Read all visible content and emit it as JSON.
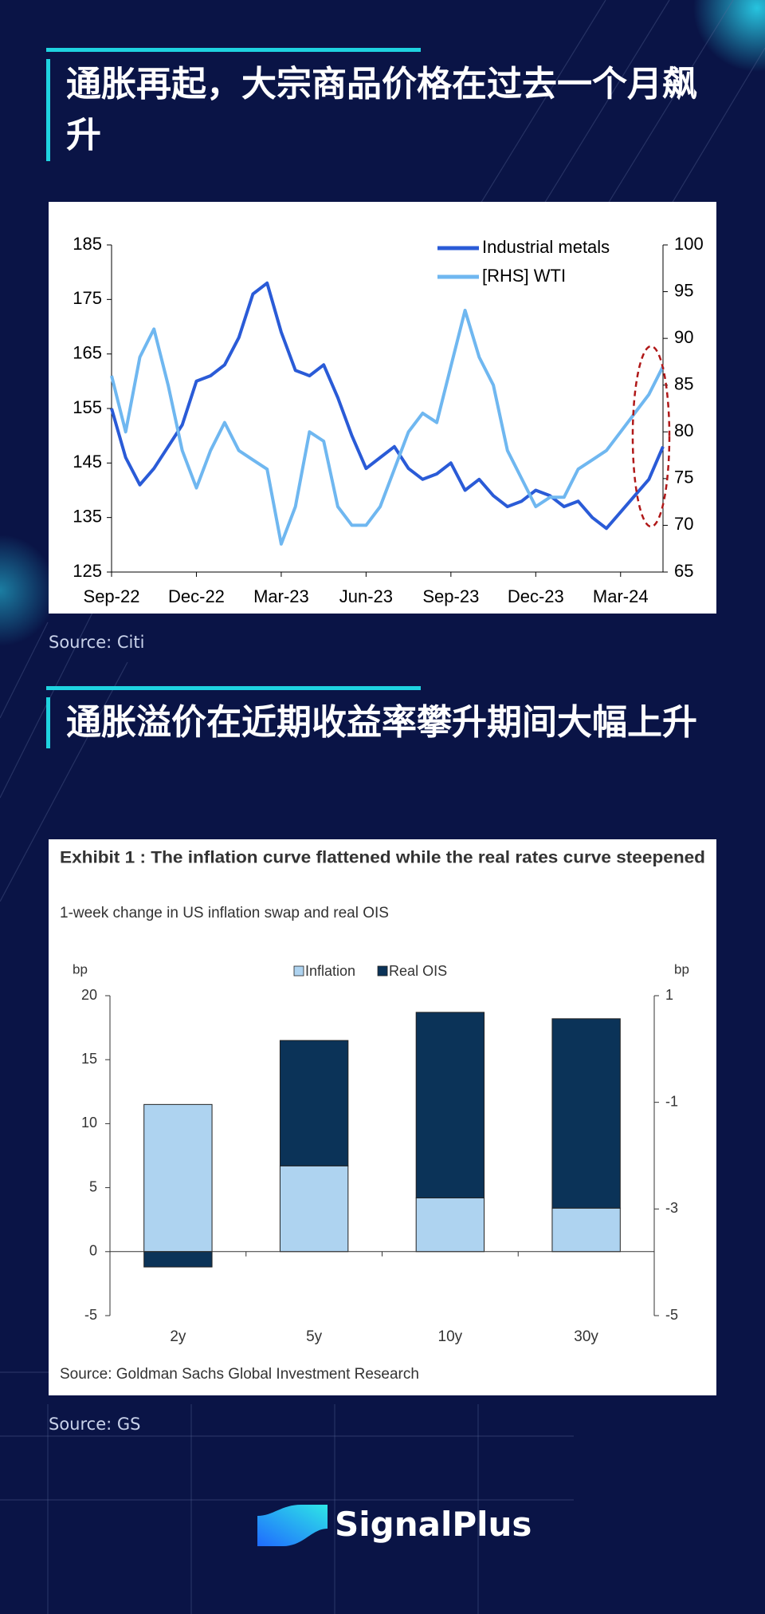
{
  "heading_1": "通胀再起，大宗商品价格在过去一个月飙升",
  "source_1": "Source: Citi",
  "heading_2": "通胀溢价在近期收益率攀升期间大幅上升",
  "source_2": "Source: GS",
  "logo": "SignalPlus",
  "chart_data": [
    {
      "type": "line",
      "categories": [
        "Sep-22",
        null,
        null,
        null,
        null,
        null,
        "Dec-22",
        null,
        null,
        null,
        null,
        null,
        "Mar-23",
        null,
        null,
        null,
        null,
        null,
        "Jun-23",
        null,
        null,
        null,
        null,
        null,
        "Sep-23",
        null,
        null,
        null,
        null,
        null,
        "Dec-23",
        null,
        null,
        null,
        null,
        null,
        "Mar-24",
        null,
        null,
        null
      ],
      "series": [
        {
          "name": "Industrial metals",
          "color": "#2a5bd7",
          "values": [
            155,
            146,
            141,
            144,
            148,
            152,
            160,
            161,
            163,
            168,
            176,
            178,
            169,
            162,
            161,
            163,
            157,
            150,
            144,
            146,
            148,
            144,
            142,
            143,
            145,
            140,
            142,
            139,
            137,
            138,
            140,
            139,
            137,
            138,
            135,
            133,
            136,
            139,
            142,
            148
          ]
        },
        {
          "name": "[RHS] WTI",
          "color": "#6fb7f0",
          "axis": "y2",
          "values": [
            86,
            80,
            88,
            91,
            85,
            78,
            74,
            78,
            81,
            78,
            77,
            76,
            68,
            72,
            80,
            79,
            72,
            70,
            70,
            72,
            76,
            80,
            82,
            81,
            87,
            93,
            88,
            85,
            78,
            75,
            72,
            73,
            73,
            76,
            77,
            78,
            80,
            82,
            84,
            87
          ]
        }
      ],
      "ylim": [
        125,
        185
      ],
      "yticks": [
        125,
        135,
        145,
        155,
        165,
        175,
        185
      ],
      "y2lim": [
        65,
        100
      ],
      "y2ticks": [
        65,
        70,
        75,
        80,
        85,
        90,
        95,
        100
      ],
      "legend": "upper right"
    },
    {
      "type": "bar",
      "stacked": true,
      "title": "Exhibit 1 : The inflation curve flattened while the real rates curve steepened",
      "subtitle": "1-week change in US inflation swap and real OIS",
      "y_label": "bp",
      "y2_label": "bp",
      "categories": [
        "2y",
        "5y",
        "10y",
        "30y"
      ],
      "series": [
        {
          "name": "Inflation",
          "color": "#aed3f0",
          "values": [
            11.5,
            6.7,
            4.2,
            3.4
          ]
        },
        {
          "name": "Real OIS",
          "color": "#0b3358",
          "values": [
            -1.2,
            9.8,
            14.5,
            14.8
          ]
        }
      ],
      "ylim": [
        -5,
        20
      ],
      "yticks": [
        -5,
        0,
        5,
        10,
        15,
        20
      ],
      "y2lim": [
        -5,
        1
      ],
      "y2ticks": [
        -5,
        -3,
        -1,
        1
      ],
      "legend": "upper center",
      "source": "Source: Goldman Sachs Global Investment Research"
    }
  ]
}
